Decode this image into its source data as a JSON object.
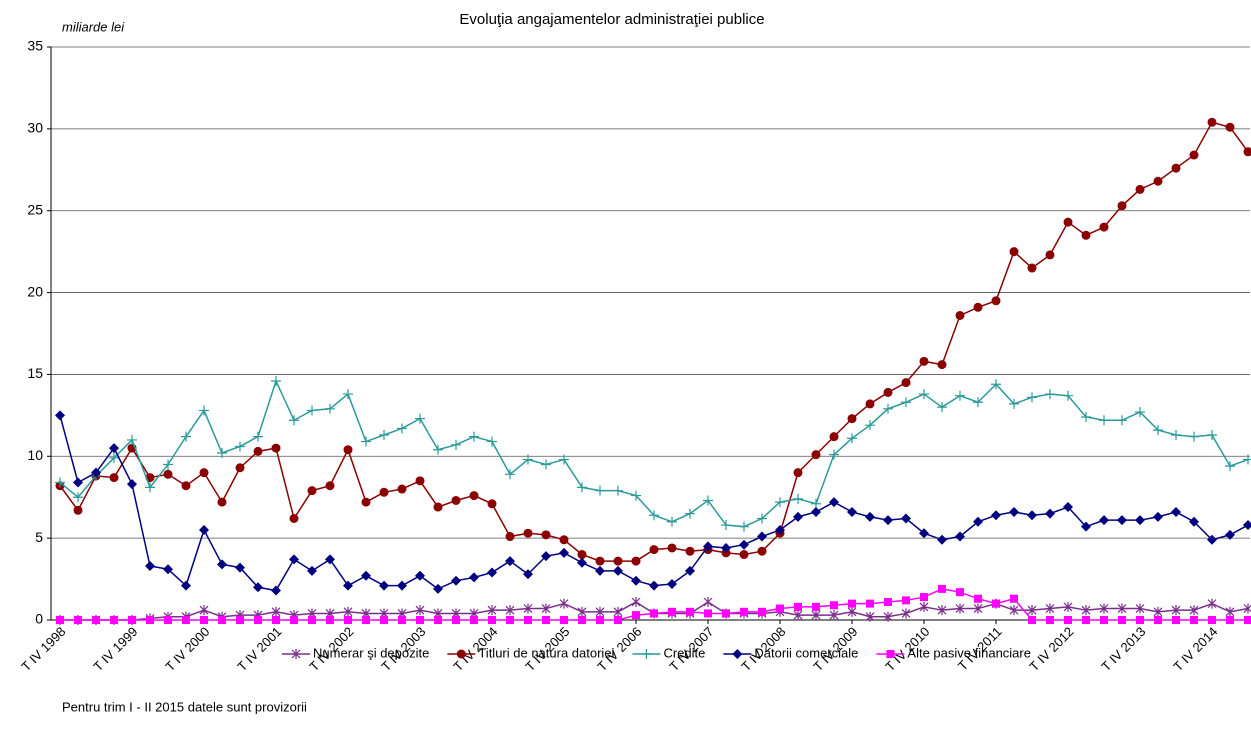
{
  "chart_data": {
    "type": "line",
    "title": "Evoluţia angajamentelor administraţiei publice",
    "y_label": "miliarde lei",
    "footnote": "Pentru trim I - II 2015 datele sunt provizorii",
    "categories": [
      "T IV 1998",
      null,
      null,
      null,
      "T IV 1999",
      null,
      null,
      null,
      "T IV 2000",
      null,
      null,
      null,
      "T IV 2001",
      null,
      null,
      null,
      "T IV 2002",
      null,
      null,
      null,
      "T IV 2003",
      null,
      null,
      null,
      "T IV 2004",
      null,
      null,
      null,
      "T IV 2005",
      null,
      null,
      null,
      "T IV 2006",
      null,
      null,
      null,
      "T IV 2007",
      null,
      null,
      null,
      "T IV 2008",
      null,
      null,
      null,
      "T IV 2009",
      null,
      null,
      null,
      "T IV 2010",
      null,
      null,
      null,
      "T IV 2011",
      null,
      null,
      null,
      "T IV 2012",
      null,
      null,
      null,
      "T IV 2013",
      null,
      null,
      null,
      "T IV 2014",
      null,
      null
    ],
    "ylim": [
      0,
      35
    ],
    "yticks": [
      0,
      5,
      10,
      15,
      20,
      25,
      30,
      35
    ],
    "grid": true,
    "legend": "bottom",
    "series": [
      {
        "name": "Numerar şi depozite",
        "color": "#7b2d8e",
        "marker": "star",
        "values": [
          0.0,
          0.0,
          0.0,
          0.0,
          0.0,
          0.1,
          0.2,
          0.2,
          0.6,
          0.2,
          0.3,
          0.3,
          0.5,
          0.3,
          0.4,
          0.4,
          0.5,
          0.4,
          0.4,
          0.4,
          0.6,
          0.4,
          0.4,
          0.4,
          0.6,
          0.6,
          0.7,
          0.7,
          1.0,
          0.5,
          0.5,
          0.5,
          1.1,
          0.4,
          0.4,
          0.4,
          1.1,
          0.4,
          0.4,
          0.4,
          0.5,
          0.3,
          0.3,
          0.3,
          0.5,
          0.2,
          0.2,
          0.4,
          0.8,
          0.6,
          0.7,
          0.7,
          1.0,
          0.6,
          0.6,
          0.7,
          0.8,
          0.6,
          0.7,
          0.7,
          0.7,
          0.5,
          0.6,
          0.6,
          1.0,
          0.5,
          0.7
        ]
      },
      {
        "name": "Titluri de natura datoriei",
        "color": "#8b0000",
        "marker": "circle",
        "values": [
          8.2,
          6.7,
          8.8,
          8.7,
          10.5,
          8.7,
          8.9,
          8.2,
          9.0,
          7.2,
          9.3,
          10.3,
          10.5,
          6.2,
          7.9,
          8.2,
          10.4,
          7.2,
          7.8,
          8.0,
          8.5,
          6.9,
          7.3,
          7.6,
          7.1,
          5.1,
          5.3,
          5.2,
          4.9,
          4.0,
          3.6,
          3.6,
          3.6,
          4.3,
          4.4,
          4.2,
          4.3,
          4.1,
          4.0,
          4.2,
          5.3,
          9.0,
          10.1,
          11.2,
          12.3,
          13.2,
          13.9,
          14.5,
          15.8,
          15.6,
          18.6,
          19.1,
          19.5,
          22.5,
          21.5,
          22.3,
          24.3,
          23.5,
          24.0,
          25.3,
          26.3,
          26.8,
          27.6,
          28.4,
          30.4,
          30.1,
          28.6
        ]
      },
      {
        "name": "Credite",
        "color": "#2a9a9a",
        "marker": "plus",
        "values": [
          8.4,
          7.5,
          8.8,
          9.9,
          11.0,
          8.1,
          9.5,
          11.2,
          12.8,
          10.2,
          10.6,
          11.2,
          14.6,
          12.2,
          12.8,
          12.9,
          13.8,
          10.9,
          11.3,
          11.7,
          12.3,
          10.4,
          10.7,
          11.2,
          10.9,
          8.9,
          9.8,
          9.5,
          9.8,
          8.1,
          7.9,
          7.9,
          7.6,
          6.4,
          6.0,
          6.5,
          7.3,
          5.8,
          5.7,
          6.2,
          7.2,
          7.4,
          7.1,
          10.1,
          11.1,
          11.9,
          12.9,
          13.3,
          13.8,
          13.0,
          13.7,
          13.3,
          14.4,
          13.2,
          13.6,
          13.8,
          13.7,
          12.4,
          12.2,
          12.2,
          12.7,
          11.6,
          11.3,
          11.2,
          11.3,
          9.4,
          9.8
        ]
      },
      {
        "name": "Datorii comerciale",
        "color": "#000080",
        "marker": "diamond",
        "values": [
          12.5,
          8.4,
          9.0,
          10.5,
          8.3,
          3.3,
          3.1,
          2.1,
          5.5,
          3.4,
          3.2,
          2.0,
          1.8,
          3.7,
          3.0,
          3.7,
          2.1,
          2.7,
          2.1,
          2.1,
          2.7,
          1.9,
          2.4,
          2.6,
          2.9,
          3.6,
          2.8,
          3.9,
          4.1,
          3.5,
          3.0,
          3.0,
          2.4,
          2.1,
          2.2,
          3.0,
          4.5,
          4.4,
          4.6,
          5.1,
          5.5,
          6.3,
          6.6,
          7.2,
          6.6,
          6.3,
          6.1,
          6.2,
          5.3,
          4.9,
          5.1,
          6.0,
          6.4,
          6.6,
          6.4,
          6.5,
          6.9,
          5.7,
          6.1,
          6.1,
          6.1,
          6.3,
          6.6,
          6.0,
          4.9,
          5.2,
          5.8
        ]
      },
      {
        "name": "Alte pasive financiare",
        "color": "#ff00ff",
        "marker": "square",
        "values": [
          0,
          0,
          0,
          0,
          0,
          0,
          0,
          0,
          0,
          0,
          0,
          0,
          0,
          0,
          0,
          0,
          0,
          0,
          0,
          0,
          0,
          0,
          0,
          0,
          0,
          0,
          0,
          0,
          0,
          0,
          0,
          0,
          0.3,
          0.4,
          0.5,
          0.5,
          0.4,
          0.4,
          0.5,
          0.5,
          0.7,
          0.8,
          0.8,
          0.9,
          1.0,
          1.0,
          1.1,
          1.2,
          1.4,
          1.9,
          1.7,
          1.3,
          1.0,
          1.3,
          0,
          0,
          0,
          0,
          0,
          0,
          0,
          0,
          0,
          0,
          0,
          0,
          0
        ]
      }
    ]
  }
}
